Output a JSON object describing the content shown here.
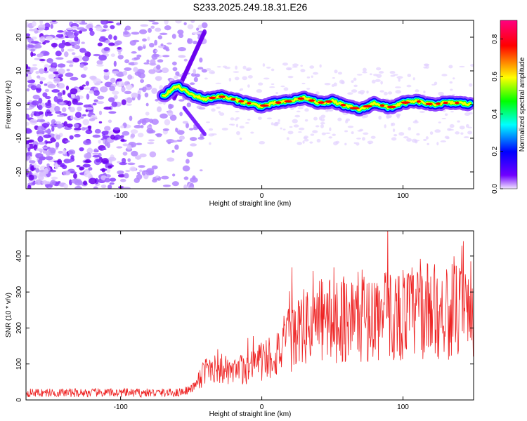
{
  "title": "S233.2025.249.18.31.E26",
  "chart_data": [
    {
      "type": "heatmap",
      "xlabel": "Height of straight line (km)",
      "ylabel": "Frequency (Hz)",
      "xlim": [
        -167,
        150
      ],
      "ylim": [
        -25,
        25
      ],
      "xticks": [
        -100,
        0,
        100
      ],
      "yticks": [
        -20,
        -10,
        0,
        10,
        20
      ],
      "colorbar": {
        "label": "Normalized spectral amplitude",
        "range": [
          0,
          0.9
        ],
        "ticks": [
          0.0,
          0.2,
          0.4,
          0.6,
          0.8
        ],
        "colors": [
          "#f2e6ff",
          "#7000ff",
          "#0000ff",
          "#00ffff",
          "#00ff00",
          "#ffff00",
          "#ff0000",
          "#ff0080"
        ]
      },
      "ridge": {
        "x": [
          -70,
          -60,
          -50,
          -40,
          -30,
          -20,
          -10,
          0,
          10,
          20,
          30,
          40,
          50,
          60,
          70,
          80,
          90,
          100,
          110,
          120,
          130,
          140,
          148
        ],
        "y": [
          2.5,
          5.5,
          3.0,
          1.5,
          2.5,
          1.5,
          0.5,
          -0.5,
          0.5,
          1.0,
          2.0,
          0.5,
          1.0,
          -0.5,
          -1.5,
          0.5,
          -1.0,
          0.5,
          1.0,
          0.0,
          0.5,
          0.5,
          0.0
        ]
      }
    },
    {
      "type": "line",
      "xlabel": "Height of straight line (km)",
      "ylabel": "SNR (10 * v/v)",
      "xlim": [
        -167,
        150
      ],
      "ylim": [
        0,
        470
      ],
      "xticks": [
        -100,
        0,
        100
      ],
      "yticks": [
        0,
        100,
        200,
        300,
        400
      ],
      "color": "#ee2222",
      "envelope": {
        "x": [
          -167,
          -60,
          -50,
          -45,
          -40,
          -35,
          -30,
          -20,
          -10,
          0,
          10,
          20,
          30,
          40,
          60,
          80,
          100,
          120,
          140,
          150
        ],
        "y": [
          20,
          20,
          30,
          50,
          80,
          100,
          90,
          70,
          95,
          110,
          130,
          170,
          200,
          220,
          230,
          230,
          240,
          250,
          245,
          240
        ]
      }
    }
  ]
}
